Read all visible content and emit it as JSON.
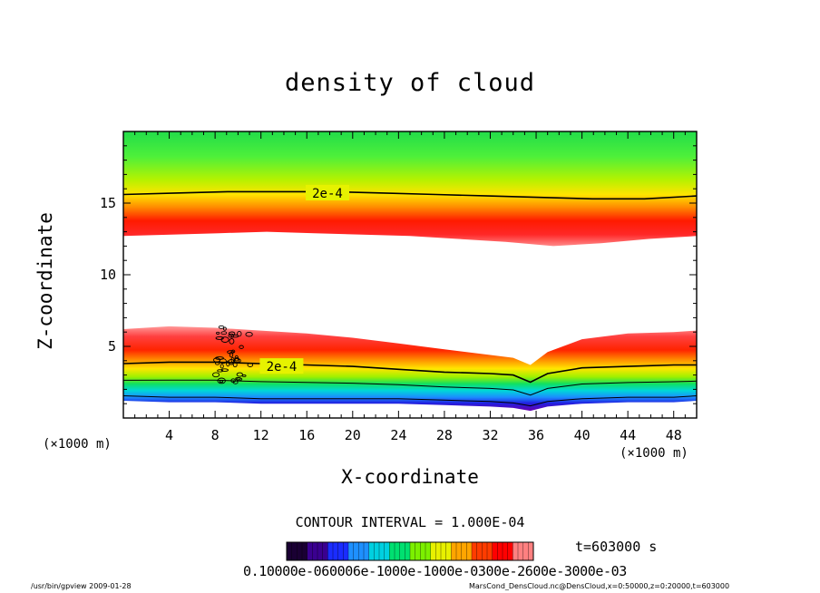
{
  "chart_data": {
    "type": "heatmap",
    "title": "density of cloud",
    "xlabel": "X-coordinate",
    "ylabel": "Z-coordinate",
    "x_unit": "(×1000 m)",
    "y_unit": "(×1000 m)",
    "xlim": [
      0,
      50
    ],
    "ylim": [
      0,
      20
    ],
    "x_ticks": [
      4,
      8,
      12,
      16,
      20,
      24,
      28,
      32,
      36,
      40,
      44,
      48
    ],
    "y_ticks": [
      5,
      10,
      15
    ],
    "contour_interval_text": "CONTOUR INTERVAL = 1.000E-04",
    "contour_labels": [
      {
        "text": "2e-4",
        "x": 17.8,
        "z": 15.7
      },
      {
        "text": "2e-4",
        "x": 13.8,
        "z": 3.6
      }
    ],
    "upper_layer": {
      "top_z": 20,
      "contour_2e4_z": [
        15.6,
        15.7,
        15.8,
        15.8,
        15.8,
        15.7,
        15.6,
        15.5,
        15.4,
        15.3,
        15.3,
        15.5
      ],
      "bottom_z": [
        12.7,
        12.8,
        12.9,
        13.0,
        12.9,
        12.8,
        12.7,
        12.5,
        12.3,
        12.0,
        12.2,
        12.5,
        12.7
      ]
    },
    "lower_layer": {
      "x": [
        0,
        4,
        8,
        12,
        16,
        20,
        24,
        28,
        32,
        34,
        35.5,
        37,
        40,
        44,
        48,
        50
      ],
      "top_z": [
        6.2,
        6.4,
        6.3,
        6.1,
        5.9,
        5.6,
        5.2,
        4.8,
        4.4,
        4.2,
        3.7,
        4.6,
        5.5,
        5.9,
        6.0,
        6.1
      ],
      "contour_2e4_z": [
        3.8,
        3.9,
        3.9,
        3.8,
        3.7,
        3.6,
        3.4,
        3.2,
        3.1,
        3.0,
        2.5,
        3.1,
        3.5,
        3.6,
        3.7,
        3.7
      ],
      "bottom_z": [
        1.2,
        1.1,
        1.1,
        1.0,
        1.0,
        1.0,
        1.0,
        0.9,
        0.8,
        0.7,
        0.5,
        0.8,
        1.0,
        1.1,
        1.1,
        1.2
      ]
    },
    "colorbar": {
      "tick_text": "0.10000e-060006e-1000e-1000e-0300e-2600e-3000e-03",
      "colors": [
        "#1a0033",
        "#3a0090",
        "#1a2cff",
        "#1e90ff",
        "#00d0e0",
        "#00e070",
        "#7cf000",
        "#e8f000",
        "#ffa500",
        "#ff3c00",
        "#ff0000",
        "#ff8080"
      ]
    },
    "time_label": "t=603000 s"
  },
  "footer": {
    "left": "/usr/bin/gpview   2009-01-28",
    "right": "MarsCond_DensCloud.nc@DensCloud,x=0:50000,z=0:20000,t=603000"
  }
}
